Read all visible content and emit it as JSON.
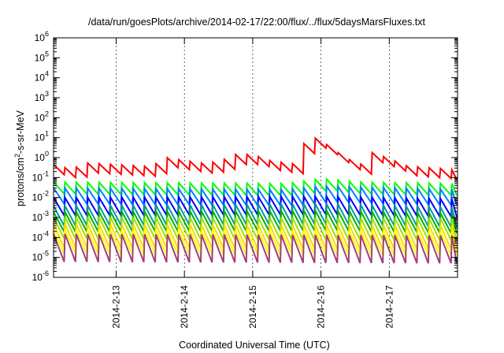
{
  "chart_data": {
    "type": "line",
    "title": "/data/run/goesPlots/archive/2014-02-17/22:00/flux/../flux/5daysMarsFluxes.txt",
    "xlabel": "Coordinated Universal Time (UTC)",
    "ylabel": "protons/cm²-s-sr-MeV",
    "ylabel_parts": {
      "pre": "protons/cm",
      "sup": "2",
      "post": "-s-sr-MeV"
    },
    "yscale": "log",
    "ylim": [
      1e-06,
      1000000.0
    ],
    "xlim": [
      "2014-02-12 02:00",
      "2014-02-18 00:00"
    ],
    "x_ticks": [
      "2014-2-13",
      "2014-2-14",
      "2014-2-15",
      "2014-2-16",
      "2014-2-17"
    ],
    "y_ticks": [
      {
        "base": "10",
        "exp": "-6"
      },
      {
        "base": "10",
        "exp": "-5"
      },
      {
        "base": "10",
        "exp": "-4"
      },
      {
        "base": "10",
        "exp": "-3"
      },
      {
        "base": "10",
        "exp": "-2"
      },
      {
        "base": "10",
        "exp": "-1"
      },
      {
        "base": "10",
        "exp": "0"
      },
      {
        "base": "10",
        "exp": "1"
      },
      {
        "base": "10",
        "exp": "2"
      },
      {
        "base": "10",
        "exp": "3"
      },
      {
        "base": "10",
        "exp": "4"
      },
      {
        "base": "10",
        "exp": "5"
      },
      {
        "base": "10",
        "exp": "6"
      }
    ],
    "grid": true,
    "legend": "none",
    "series": [
      {
        "color": "#ff0000",
        "x": [
          "2014-02-12 02:00",
          "2014-02-12 08:00",
          "2014-02-12 14:00",
          "2014-02-13 00:00",
          "2014-02-13 12:00",
          "2014-02-13 18:00",
          "2014-02-14 00:00",
          "2014-02-14 06:00",
          "2014-02-14 12:00",
          "2014-02-14 18:00",
          "2014-02-15 00:00",
          "2014-02-15 06:00",
          "2014-02-15 12:00",
          "2014-02-15 17:00",
          "2014-02-15 17:30",
          "2014-02-15 21:00",
          "2014-02-16 00:00",
          "2014-02-16 06:00",
          "2014-02-16 12:00",
          "2014-02-16 17:00",
          "2014-02-16 18:00",
          "2014-02-17 00:00",
          "2014-02-17 06:00",
          "2014-02-17 12:00",
          "2014-02-17 18:00",
          "2014-02-18 00:00"
        ],
        "y": [
          0.25,
          0.15,
          0.3,
          0.25,
          0.2,
          0.55,
          0.4,
          0.3,
          0.35,
          0.8,
          0.8,
          0.4,
          0.3,
          0.25,
          2.5,
          6.0,
          4.0,
          1.0,
          0.3,
          0.22,
          1.0,
          0.5,
          0.22,
          0.18,
          0.16,
          0.13
        ],
        "osc_amp": 0.25
      },
      {
        "color": "#00ff00",
        "x": [
          "2014-02-12 02:00",
          "2014-02-15 12:00",
          "2014-02-16 00:00",
          "2014-02-16 12:00",
          "2014-02-18 00:00"
        ],
        "y": [
          0.03,
          0.025,
          0.045,
          0.03,
          0.025
        ],
        "osc_amp": 0.3
      },
      {
        "color": "#0080ff",
        "x": [
          "2014-02-12 02:00",
          "2014-02-15 12:00",
          "2014-02-16 00:00",
          "2014-02-18 00:00"
        ],
        "y": [
          0.012,
          0.01,
          0.015,
          0.01
        ],
        "osc_amp": 0.4
      },
      {
        "color": "#0000ff",
        "x": [
          "2014-02-12 02:00",
          "2014-02-16 00:00",
          "2014-02-18 00:00"
        ],
        "y": [
          0.0035,
          0.004,
          0.003
        ],
        "osc_amp": 0.45
      },
      {
        "color": "#009b9b",
        "x": [
          "2014-02-12 02:00",
          "2014-02-16 00:00",
          "2014-02-18 00:00"
        ],
        "y": [
          0.0012,
          0.0015,
          0.001
        ],
        "osc_amp": 0.5
      },
      {
        "color": "#00b000",
        "x": [
          "2014-02-12 02:00",
          "2014-02-16 00:00",
          "2014-02-18 00:00"
        ],
        "y": [
          0.0006,
          0.0007,
          0.0005
        ],
        "osc_amp": 0.5
      },
      {
        "color": "#a0e000",
        "x": [
          "2014-02-12 02:00",
          "2014-02-18 00:00"
        ],
        "y": [
          0.0003,
          0.00025
        ],
        "osc_amp": 0.55
      },
      {
        "color": "#ffd800",
        "x": [
          "2014-02-12 02:00",
          "2014-02-18 00:00"
        ],
        "y": [
          0.00012,
          0.0001
        ],
        "osc_amp": 0.6
      },
      {
        "color": "#ffff00",
        "x": [
          "2014-02-12 02:00",
          "2014-02-18 00:00"
        ],
        "y": [
          6e-05,
          5e-05
        ],
        "osc_amp": 0.6
      },
      {
        "color": "#a0407a",
        "x": [
          "2014-02-12 02:00",
          "2014-02-18 00:00"
        ],
        "y": [
          3e-05,
          2.5e-05
        ],
        "osc_amp": 0.7
      }
    ]
  }
}
